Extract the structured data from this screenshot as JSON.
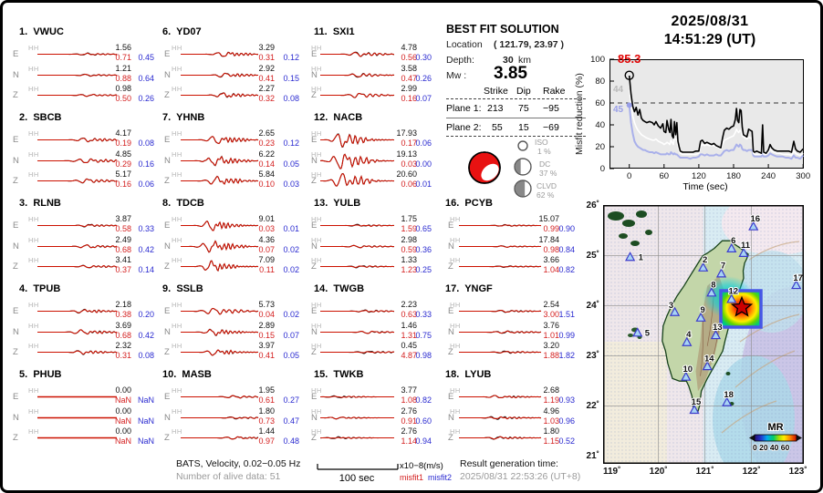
{
  "header": {
    "date": "2025/08/31",
    "time": "14:51:29  (UT)"
  },
  "solution": {
    "title": "BEST FIT SOLUTION",
    "location_label": "Location",
    "location_value": "( 121.79,  23.97 )",
    "depth_label": "Depth:",
    "depth_value": "30",
    "depth_unit": "km",
    "mw_label": "Mw :",
    "mw_value": "3.85",
    "table": {
      "headers": [
        "Strike",
        "Dip",
        "Rake"
      ],
      "rows": [
        {
          "label": "Plane 1:",
          "strike": "213",
          "dip": "75",
          "rake": "−95"
        },
        {
          "label": "Plane 2:",
          "strike": "55",
          "dip": "15",
          "rake": "−69"
        }
      ]
    },
    "decomposition": [
      {
        "name": "ISO",
        "pct": "1 %",
        "frac": 0.01
      },
      {
        "name": "DC",
        "pct": "37 %",
        "frac": 0.37
      },
      {
        "name": "CLVD",
        "pct": "62 %",
        "frac": 0.62
      }
    ]
  },
  "footer": {
    "band_info": "BATS, Velocity, 0.02−0.05 Hz",
    "alive": "Number of alive data: 51",
    "scalebar": "100 sec",
    "unit": "x10−8(m/s)",
    "misfit1": "misfit1",
    "misfit2": "misfit2",
    "gen_label": "Result generation time:",
    "gen_time": "2025/08/31 22:53:26 (UT+8)"
  },
  "stations": [
    {
      "num": "1.",
      "name": "VWUC",
      "col": 0,
      "row": 0,
      "burst": 0.62,
      "wig": 1.6,
      "channels": [
        {
          "comp": "E",
          "band": "HH",
          "value": "1.56",
          "m1": "0.71",
          "m2": "0.45"
        },
        {
          "comp": "N",
          "band": "HH",
          "value": "1.21",
          "m1": "0.88",
          "m2": "0.64"
        },
        {
          "comp": "Z",
          "band": "HH",
          "value": "0.98",
          "m1": "0.50",
          "m2": "0.26"
        }
      ]
    },
    {
      "num": "2.",
      "name": "SBCB",
      "col": 0,
      "row": 1,
      "burst": 0.6,
      "wig": 3.2,
      "channels": [
        {
          "comp": "E",
          "band": "HH",
          "value": "4.17",
          "m1": "0.19",
          "m2": "0.08"
        },
        {
          "comp": "N",
          "band": "HH",
          "value": "4.85",
          "m1": "0.29",
          "m2": "0.16"
        },
        {
          "comp": "Z",
          "band": "HH",
          "value": "5.17",
          "m1": "0.16",
          "m2": "0.06"
        }
      ]
    },
    {
      "num": "3.",
      "name": "RLNB",
      "col": 0,
      "row": 2,
      "burst": 0.62,
      "wig": 2.2,
      "channels": [
        {
          "comp": "E",
          "band": "HH",
          "value": "3.87",
          "m1": "0.58",
          "m2": "0.33"
        },
        {
          "comp": "N",
          "band": "HH",
          "value": "2.49",
          "m1": "0.68",
          "m2": "0.42"
        },
        {
          "comp": "Z",
          "band": "HH",
          "value": "3.41",
          "m1": "0.37",
          "m2": "0.14"
        }
      ]
    },
    {
      "num": "4.",
      "name": "TPUB",
      "col": 0,
      "row": 3,
      "burst": 0.55,
      "wig": 3.2,
      "channels": [
        {
          "comp": "E",
          "band": "HH",
          "value": "2.18",
          "m1": "0.38",
          "m2": "0.20"
        },
        {
          "comp": "N",
          "band": "HH",
          "value": "3.69",
          "m1": "0.68",
          "m2": "0.42"
        },
        {
          "comp": "Z",
          "band": "HH",
          "value": "2.32",
          "m1": "0.31",
          "m2": "0.08"
        }
      ]
    },
    {
      "num": "5.",
      "name": "PHUB",
      "col": 0,
      "row": 4,
      "burst": 0.5,
      "wig": 0,
      "channels": [
        {
          "comp": "E",
          "band": "HH",
          "value": "0.00",
          "m1": "NaN",
          "m2": "NaN"
        },
        {
          "comp": "N",
          "band": "HH",
          "value": "0.00",
          "m1": "NaN",
          "m2": "NaN"
        },
        {
          "comp": "Z",
          "band": "HH",
          "value": "0.00",
          "m1": "NaN",
          "m2": "NaN"
        }
      ]
    },
    {
      "num": "6.",
      "name": "YD07",
      "col": 1,
      "row": 0,
      "burst": 0.55,
      "wig": 3.6,
      "channels": [
        {
          "comp": "E",
          "band": "HH",
          "value": "3.29",
          "m1": "0.31",
          "m2": "0.12"
        },
        {
          "comp": "N",
          "band": "HH",
          "value": "2.92",
          "m1": "0.41",
          "m2": "0.15"
        },
        {
          "comp": "Z",
          "band": "HH",
          "value": "2.27",
          "m1": "0.32",
          "m2": "0.08"
        }
      ]
    },
    {
      "num": "7.",
      "name": "YHNB",
      "col": 1,
      "row": 1,
      "burst": 0.45,
      "wig": 6,
      "channels": [
        {
          "comp": "E",
          "band": "HH",
          "value": "2.65",
          "m1": "0.23",
          "m2": "0.12"
        },
        {
          "comp": "N",
          "band": "HH",
          "value": "6.22",
          "m1": "0.14",
          "m2": "0.05"
        },
        {
          "comp": "Z",
          "band": "HH",
          "value": "5.84",
          "m1": "0.10",
          "m2": "0.03"
        }
      ]
    },
    {
      "num": "8.",
      "name": "TDCB",
      "col": 1,
      "row": 2,
      "burst": 0.38,
      "wig": 7.5,
      "channels": [
        {
          "comp": "E",
          "band": "HH",
          "value": "9.01",
          "m1": "0.03",
          "m2": "0.01"
        },
        {
          "comp": "N",
          "band": "HH",
          "value": "4.36",
          "m1": "0.07",
          "m2": "0.02"
        },
        {
          "comp": "Z",
          "band": "HH",
          "value": "7.09",
          "m1": "0.11",
          "m2": "0.02"
        }
      ]
    },
    {
      "num": "9.",
      "name": "SSLB",
      "col": 1,
      "row": 3,
      "burst": 0.42,
      "wig": 4.5,
      "channels": [
        {
          "comp": "E",
          "band": "HH",
          "value": "5.73",
          "m1": "0.04",
          "m2": "0.02"
        },
        {
          "comp": "N",
          "band": "HH",
          "value": "2.89",
          "m1": "0.15",
          "m2": "0.07"
        },
        {
          "comp": "Z",
          "band": "HH",
          "value": "3.97",
          "m1": "0.41",
          "m2": "0.05"
        }
      ]
    },
    {
      "num": "10.",
      "name": "MASB",
      "col": 1,
      "row": 4,
      "burst": 0.68,
      "wig": 1.8,
      "channels": [
        {
          "comp": "E",
          "band": "HH",
          "value": "1.95",
          "m1": "0.61",
          "m2": "0.27"
        },
        {
          "comp": "N",
          "band": "HH",
          "value": "1.80",
          "m1": "0.73",
          "m2": "0.47"
        },
        {
          "comp": "Z",
          "band": "HH",
          "value": "1.44",
          "m1": "0.97",
          "m2": "0.48"
        }
      ]
    },
    {
      "num": "11.",
      "name": "SXI1",
      "col": 2,
      "row": 0,
      "burst": 0.5,
      "wig": 3.5,
      "channels": [
        {
          "comp": "E",
          "band": "HH",
          "value": "4.78",
          "m1": "0.56",
          "m2": "0.30"
        },
        {
          "comp": "N",
          "band": "HH",
          "value": "3.58",
          "m1": "0.47",
          "m2": "0.26"
        },
        {
          "comp": "Z",
          "band": "HH",
          "value": "2.99",
          "m1": "0.16",
          "m2": "0.07"
        }
      ]
    },
    {
      "num": "12.",
      "name": "NACB",
      "col": 2,
      "row": 1,
      "burst": 0.28,
      "wig": 11,
      "channels": [
        {
          "comp": "E",
          "band": "HH",
          "value": "17.93",
          "m1": "0.17",
          "m2": "0.06"
        },
        {
          "comp": "N",
          "band": "HH",
          "value": "19.13",
          "m1": "0.03",
          "m2": "0.00"
        },
        {
          "comp": "Z",
          "band": "HH",
          "value": "20.60",
          "m1": "0.06",
          "m2": "0.01"
        }
      ]
    },
    {
      "num": "13.",
      "name": "YULB",
      "col": 2,
      "row": 2,
      "burst": 0.5,
      "wig": 1.8,
      "channels": [
        {
          "comp": "E",
          "band": "HH",
          "value": "1.75",
          "m1": "1.59",
          "m2": "0.65"
        },
        {
          "comp": "N",
          "band": "HH",
          "value": "2.98",
          "m1": "0.59",
          "m2": "0.36"
        },
        {
          "comp": "Z",
          "band": "HH",
          "value": "1.33",
          "m1": "1.23",
          "m2": "0.25"
        }
      ]
    },
    {
      "num": "14.",
      "name": "TWGB",
      "col": 2,
      "row": 3,
      "burst": 0.62,
      "wig": 1.8,
      "channels": [
        {
          "comp": "E",
          "band": "HH",
          "value": "2.23",
          "m1": "0.63",
          "m2": "0.33"
        },
        {
          "comp": "N",
          "band": "HH",
          "value": "1.46",
          "m1": "1.31",
          "m2": "0.75"
        },
        {
          "comp": "Z",
          "band": "HH",
          "value": "0.45",
          "m1": "4.87",
          "m2": "0.98"
        }
      ]
    },
    {
      "num": "15.",
      "name": "TWKB",
      "col": 2,
      "row": 4,
      "burst": 0.22,
      "wig": 1.6,
      "channels": [
        {
          "comp": "E",
          "band": "HH",
          "value": "3.77",
          "m1": "1.08",
          "m2": "0.82"
        },
        {
          "comp": "N",
          "band": "HH",
          "value": "2.76",
          "m1": "0.91",
          "m2": "0.60"
        },
        {
          "comp": "Z",
          "band": "HH",
          "value": "2.76",
          "m1": "1.14",
          "m2": "0.94"
        }
      ]
    },
    {
      "num": "16.",
      "name": "PCYB",
      "col": 3,
      "row": 2,
      "burst": 0.55,
      "wig": 1.2,
      "channels": [
        {
          "comp": "E",
          "band": "HH",
          "value": "15.07",
          "m1": "0.99",
          "m2": "0.90"
        },
        {
          "comp": "N",
          "band": "HH",
          "value": "17.84",
          "m1": "0.98",
          "m2": "0.84"
        },
        {
          "comp": "Z",
          "band": "HH",
          "value": "3.66",
          "m1": "1.04",
          "m2": "0.82"
        }
      ]
    },
    {
      "num": "17.",
      "name": "YNGF",
      "col": 3,
      "row": 3,
      "burst": 0.55,
      "wig": 1.8,
      "channels": [
        {
          "comp": "E",
          "band": "HH",
          "value": "2.54",
          "m1": "3.00",
          "m2": "1.51"
        },
        {
          "comp": "N",
          "band": "HH",
          "value": "3.76",
          "m1": "1.01",
          "m2": "0.99"
        },
        {
          "comp": "Z",
          "band": "HH",
          "value": "3.20",
          "m1": "1.88",
          "m2": "1.82"
        }
      ]
    },
    {
      "num": "18.",
      "name": "LYUB",
      "col": 3,
      "row": 4,
      "burst": 0.45,
      "wig": 2.2,
      "channels": [
        {
          "comp": "E",
          "band": "HH",
          "value": "2.68",
          "m1": "1.19",
          "m2": "0.93"
        },
        {
          "comp": "N",
          "band": "HH",
          "value": "4.96",
          "m1": "1.03",
          "m2": "0.96"
        },
        {
          "comp": "Z",
          "band": "HH",
          "value": "1.80",
          "m1": "1.15",
          "m2": "0.52"
        }
      ]
    }
  ],
  "chart_data": {
    "type": "line",
    "title": "Misfit reduction vs time",
    "xlabel": "Time (sec)",
    "ylabel": "Misfit reduction (%)",
    "xlim": [
      -34,
      300
    ],
    "ylim": [
      0,
      100
    ],
    "xticks": [
      0,
      60,
      120,
      180,
      240,
      300
    ],
    "yticks": [
      0,
      20,
      40,
      60,
      80,
      100
    ],
    "grid": false,
    "reference_line_y": 60,
    "annotations": [
      {
        "text": "85.3",
        "color": "#e00000",
        "at": [
          0,
          85.3
        ],
        "marker": "open-circle"
      },
      {
        "text": "44",
        "color": "#b9b9b9",
        "at": [
          0,
          72
        ]
      },
      {
        "text": "45",
        "color": "#9aa0e8",
        "at": [
          0,
          58
        ],
        "marker": "dot"
      }
    ],
    "x": [
      0,
      3,
      6,
      9,
      12,
      15,
      18,
      21,
      24,
      27,
      30,
      35,
      40,
      43,
      46,
      50,
      54,
      58,
      60,
      63,
      65,
      68,
      70,
      72,
      74,
      76,
      78,
      80,
      82,
      84,
      86,
      88,
      92,
      96,
      100,
      105,
      110,
      115,
      120,
      123,
      126,
      130,
      134,
      138,
      142,
      146,
      150,
      154,
      158,
      161,
      164,
      168,
      172,
      176,
      180,
      183,
      185,
      187,
      189,
      191,
      193,
      195,
      197,
      200,
      203,
      206,
      209,
      212,
      214,
      216,
      220,
      224,
      228,
      230,
      232,
      236,
      240,
      243,
      246,
      250,
      255,
      260,
      265,
      270,
      275,
      280,
      284,
      287,
      290,
      295,
      300
    ],
    "series": [
      {
        "name": "misfit2",
        "color": "#a9b0ea",
        "y": [
          58,
          42,
          32,
          25,
          22,
          20,
          19,
          18,
          17,
          17,
          16,
          15,
          15,
          14,
          15,
          14,
          13,
          13,
          13,
          13,
          14,
          13,
          13,
          15,
          14,
          13,
          14,
          13,
          13,
          12,
          11,
          10,
          10,
          10,
          10,
          9,
          10,
          10,
          11,
          13,
          13,
          12,
          13,
          12,
          12,
          12,
          13,
          12,
          12,
          14,
          16,
          17,
          16,
          17,
          17,
          20,
          22,
          21,
          20,
          22,
          21,
          18,
          17,
          17,
          16,
          17,
          17,
          17,
          12,
          11,
          11,
          11,
          11,
          14,
          11,
          11,
          12,
          14,
          13,
          12,
          11,
          11,
          11,
          10,
          10,
          9,
          12,
          10,
          10,
          9,
          12
        ]
      },
      {
        "name": "misfit1",
        "color": "#ffffff",
        "y": [
          72,
          58,
          48,
          42,
          38,
          35,
          33,
          31,
          30,
          29,
          28,
          27,
          26,
          26,
          27,
          25,
          24,
          23,
          22,
          23,
          24,
          23,
          22,
          26,
          24,
          22,
          28,
          27,
          26,
          20,
          16,
          14,
          13,
          13,
          13,
          13,
          13,
          13,
          14,
          20,
          22,
          21,
          22,
          21,
          21,
          21,
          20,
          19,
          18,
          22,
          26,
          27,
          28,
          29,
          30,
          33,
          36,
          34,
          33,
          35,
          34,
          30,
          29,
          28,
          27,
          29,
          28,
          28,
          14,
          13,
          13,
          13,
          13,
          20,
          13,
          13,
          15,
          18,
          16,
          15,
          14,
          14,
          13,
          13,
          13,
          12,
          16,
          14,
          13,
          12,
          14
        ]
      },
      {
        "name": "best",
        "color": "#000000",
        "y": [
          85,
          68,
          57,
          52,
          56,
          49,
          54,
          46,
          44,
          43,
          42,
          43,
          42,
          40,
          43,
          39,
          37,
          41,
          34,
          33,
          44,
          36,
          33,
          45,
          30,
          28,
          43,
          31,
          42,
          25,
          20,
          16,
          15,
          15,
          15,
          15,
          15,
          16,
          16,
          25,
          26,
          23,
          24,
          23,
          22,
          23,
          21,
          20,
          19,
          28,
          35,
          37,
          36,
          38,
          39,
          45,
          55,
          44,
          42,
          54,
          53,
          38,
          31,
          30,
          29,
          36,
          35,
          34,
          16,
          15,
          16,
          15,
          14,
          40,
          15,
          14,
          17,
          22,
          19,
          17,
          16,
          16,
          16,
          16,
          16,
          15,
          25,
          18,
          16,
          15,
          18
        ]
      }
    ]
  },
  "map": {
    "lon_ticks": [
      "119˚",
      "120˚",
      "121˚",
      "122˚",
      "123˚"
    ],
    "lat_ticks": [
      "26˚",
      "25˚",
      "24˚",
      "23˚",
      "22˚",
      "21˚"
    ],
    "colorbar_label": "MR",
    "colorbar_ticks": "0 20 40 60",
    "epicenter": {
      "lon": 121.79,
      "lat": 23.97
    },
    "stations": [
      {
        "n": "1",
        "lon": 119.39,
        "lat": 24.97
      },
      {
        "n": "2",
        "lon": 120.96,
        "lat": 24.76
      },
      {
        "n": "3",
        "lon": 120.35,
        "lat": 23.87
      },
      {
        "n": "4",
        "lon": 120.61,
        "lat": 23.27
      },
      {
        "n": "5",
        "lon": 119.55,
        "lat": 23.46
      },
      {
        "n": "6",
        "lon": 121.57,
        "lat": 25.14
      },
      {
        "n": "7",
        "lon": 121.35,
        "lat": 24.64
      },
      {
        "n": "8",
        "lon": 121.14,
        "lat": 24.26
      },
      {
        "n": "9",
        "lon": 120.91,
        "lat": 23.76
      },
      {
        "n": "10",
        "lon": 120.59,
        "lat": 22.58
      },
      {
        "n": "11",
        "lon": 121.83,
        "lat": 25.05
      },
      {
        "n": "12",
        "lon": 121.57,
        "lat": 24.13
      },
      {
        "n": "13",
        "lon": 121.23,
        "lat": 23.41
      },
      {
        "n": "14",
        "lon": 121.05,
        "lat": 22.79
      },
      {
        "n": "15",
        "lon": 120.77,
        "lat": 21.92
      },
      {
        "n": "16",
        "lon": 122.04,
        "lat": 25.58
      },
      {
        "n": "17",
        "lon": 122.96,
        "lat": 24.41
      },
      {
        "n": "18",
        "lon": 121.47,
        "lat": 22.07
      }
    ]
  }
}
